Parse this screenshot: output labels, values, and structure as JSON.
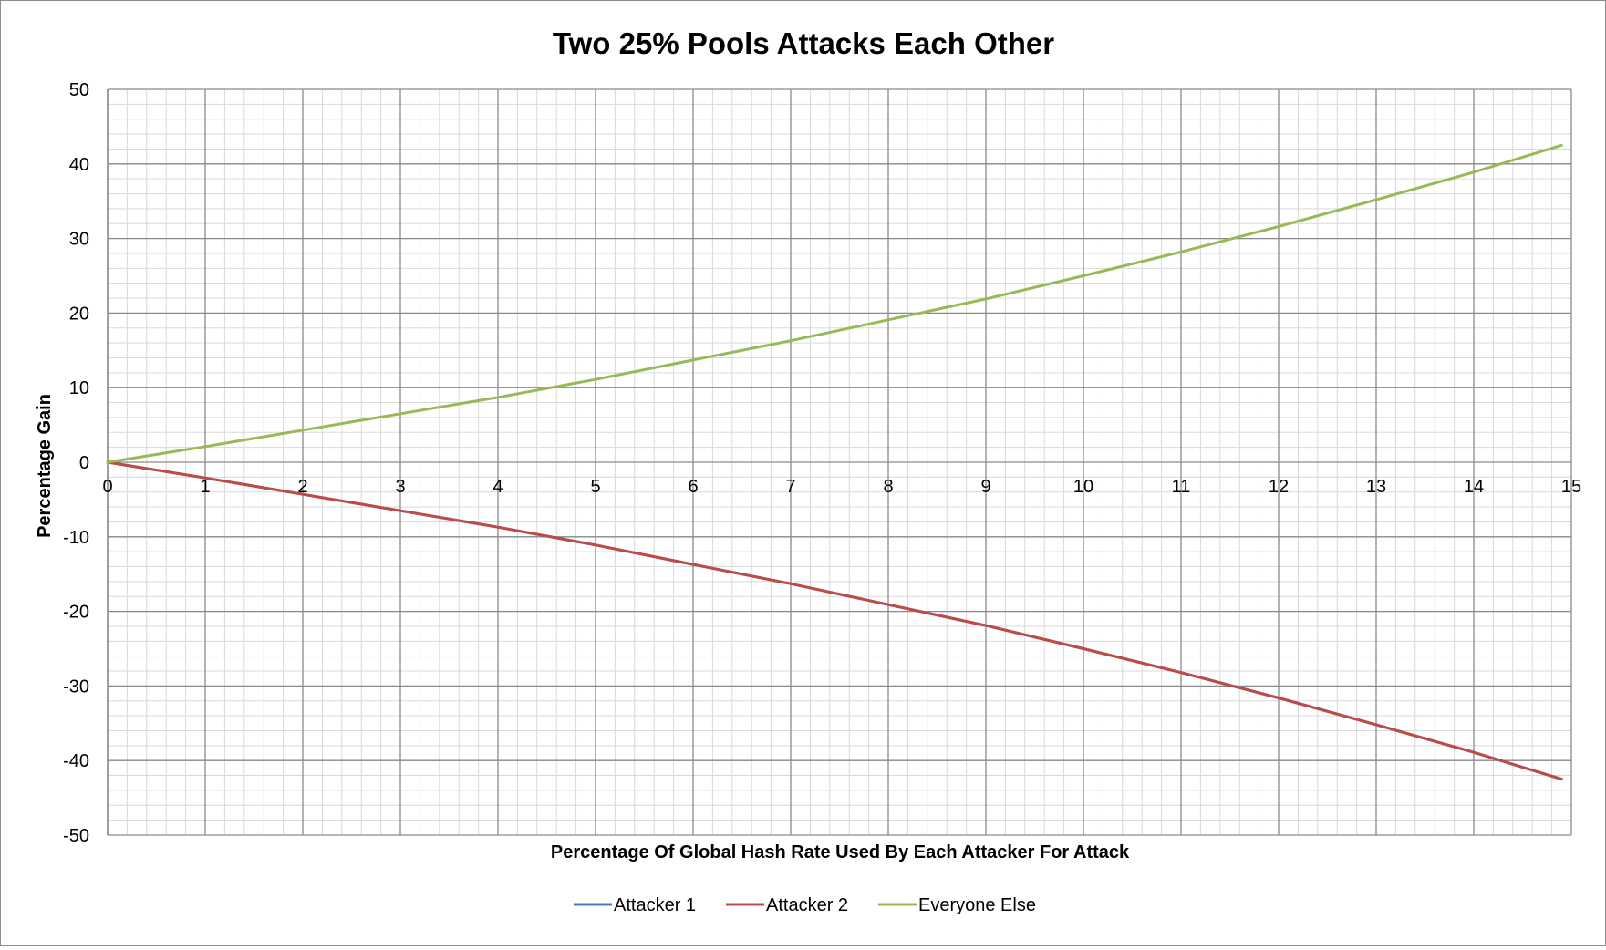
{
  "chart_data": {
    "type": "line",
    "title": "Two 25% Pools Attacks Each Other",
    "xlabel": "Percentage Of Global Hash Rate Used By Each Attacker For Attack",
    "ylabel": "Percentage Gain",
    "xlim": [
      0,
      15
    ],
    "ylim": [
      -50,
      50
    ],
    "x_ticks": [
      0,
      1,
      2,
      3,
      4,
      5,
      6,
      7,
      8,
      9,
      10,
      11,
      12,
      13,
      14,
      15
    ],
    "y_ticks": [
      50,
      40,
      30,
      20,
      10,
      0,
      -10,
      -20,
      -30,
      -40,
      -50
    ],
    "grid": true,
    "legend_position": "bottom",
    "x": [
      0,
      1,
      2,
      3,
      4,
      5,
      6,
      7,
      8,
      9,
      10,
      11,
      12,
      13,
      14,
      14.9
    ],
    "series": [
      {
        "name": "Attacker 1",
        "color": "#4a7ebb",
        "values": [
          0,
          -2.1,
          -4.3,
          -6.5,
          -8.7,
          -11.1,
          -13.7,
          -16.3,
          -19.1,
          -21.9,
          -25.0,
          -28.2,
          -31.6,
          -35.2,
          -38.9,
          -42.5
        ]
      },
      {
        "name": "Attacker 2",
        "color": "#be4b48",
        "values": [
          0,
          -2.1,
          -4.3,
          -6.5,
          -8.7,
          -11.1,
          -13.7,
          -16.3,
          -19.1,
          -21.9,
          -25.0,
          -28.2,
          -31.6,
          -35.2,
          -38.9,
          -42.5
        ]
      },
      {
        "name": "Everyone Else",
        "color": "#98b954",
        "values": [
          0,
          2.1,
          4.3,
          6.5,
          8.7,
          11.1,
          13.7,
          16.3,
          19.1,
          21.9,
          25.0,
          28.2,
          31.6,
          35.2,
          38.9,
          42.5
        ]
      }
    ]
  }
}
